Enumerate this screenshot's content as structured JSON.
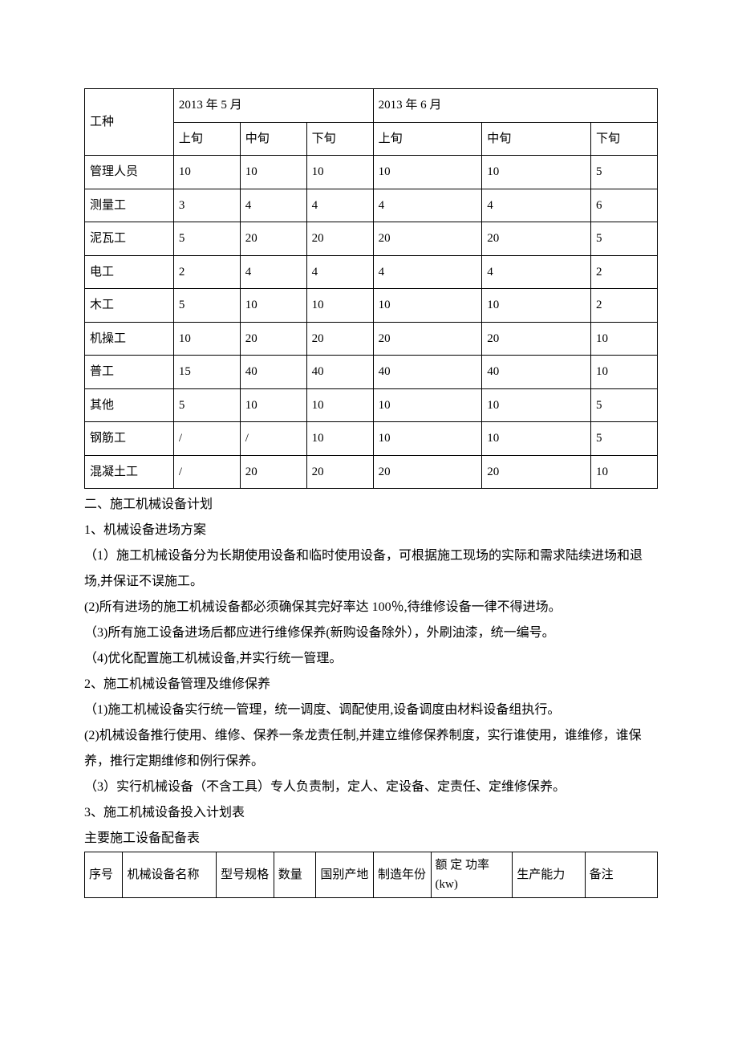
{
  "table1": {
    "header_month_1": "2013 年 5 月",
    "header_month_2": "2013 年 6 月",
    "col0_label": "工种",
    "sub_labels": [
      "上旬",
      "中旬",
      "下旬",
      "上旬",
      "中旬",
      "下旬"
    ],
    "rows": [
      {
        "name": "管理人员",
        "v": [
          "10",
          "10",
          "10",
          "10",
          "10",
          "5"
        ]
      },
      {
        "name": "测量工",
        "v": [
          "3",
          "4",
          "4",
          "4",
          "4",
          "6"
        ]
      },
      {
        "name": "泥瓦工",
        "v": [
          "5",
          "20",
          "20",
          "20",
          "20",
          "5"
        ]
      },
      {
        "name": "电工",
        "v": [
          "2",
          "4",
          "4",
          "4",
          "4",
          "2"
        ]
      },
      {
        "name": "木工",
        "v": [
          "5",
          "10",
          "10",
          "10",
          "10",
          "2"
        ]
      },
      {
        "name": "机操工",
        "v": [
          "10",
          "20",
          "20",
          "20",
          "20",
          "10"
        ]
      },
      {
        "name": "普工",
        "v": [
          "15",
          "40",
          "40",
          "40",
          "40",
          "10"
        ]
      },
      {
        "name": "其他",
        "v": [
          "5",
          "10",
          "10",
          "10",
          "10",
          "5"
        ]
      },
      {
        "name": "钢筋工",
        "v": [
          "/",
          "/",
          "10",
          "10",
          "10",
          "5"
        ]
      },
      {
        "name": "混凝土工",
        "v": [
          "/",
          "20",
          "20",
          "20",
          "20",
          "10"
        ]
      }
    ],
    "border_color": "#000000",
    "background_color": "#ffffff",
    "text_color": "#000000",
    "font_size": 15
  },
  "body": {
    "p1": "二、施工机械设备计划",
    "p2": "1、机械设备进场方案",
    "p3": "（1）施工机械设备分为长期使用设备和临时使用设备，可根据施工现场的实际和需求陆续进场和退场,并保证不误施工。",
    "p4": "(2)所有进场的施工机械设备都必须确保其完好率达 100％,待维修设备一律不得进场。",
    "p5": "（3)所有施工设备进场后都应进行维修保养(新购设备除外），外刷油漆，统一编号。",
    "p6": "（4)优化配置施工机械设备,并实行统一管理。",
    "p7": "2、施工机械设备管理及维修保养",
    "p8": "（1)施工机械设备实行统一管理，统一调度、调配使用,设备调度由材料设备组执行。",
    "p9": "(2)机械设备推行使用、维修、保养一条龙责任制,并建立维修保养制度，实行谁使用，谁维修，谁保养，推行定期维修和例行保养。",
    "p10": "（3）实行机械设备（不含工具）专人负责制，定人、定设备、定责任、定维修保养。",
    "p11": "3、施工机械设备投入计划表",
    "p12": "主要施工设备配备表"
  },
  "table2": {
    "headers": [
      "序号",
      "机械设备名称",
      "型号规格",
      "数量",
      "国别产地",
      "制造年份",
      "额 定 功率(kw)",
      "生产能力",
      "备注"
    ],
    "border_color": "#000000",
    "background_color": "#ffffff",
    "font_size": 15
  }
}
